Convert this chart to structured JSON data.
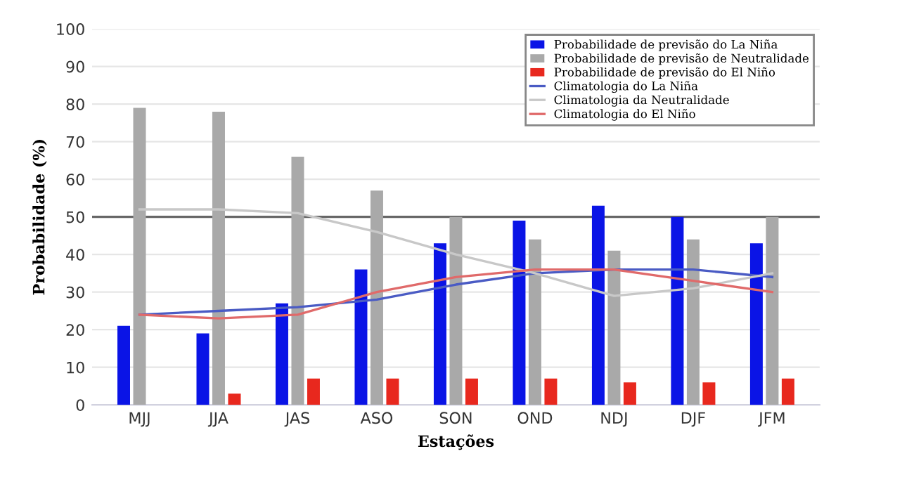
{
  "chart_data": {
    "type": "bar",
    "xlabel": "Estações",
    "ylabel": "Probabilidade (%)",
    "categories": [
      "MJJ",
      "JJA",
      "JAS",
      "ASO",
      "SON",
      "OND",
      "NDJ",
      "DJF",
      "JFM"
    ],
    "series": [
      {
        "name": "Probabilidade de previsão do La Niña",
        "color": "#0a14e6",
        "values": [
          21,
          19,
          27,
          36,
          43,
          49,
          53,
          50,
          43
        ]
      },
      {
        "name": "Probabilidade de previsão de Neutralidade",
        "color": "#a9a9a9",
        "values": [
          79,
          78,
          66,
          57,
          50,
          44,
          41,
          44,
          50
        ]
      },
      {
        "name": "Probabilidade de previsão do El Niño",
        "color": "#e8281e",
        "values": [
          0,
          3,
          7,
          7,
          7,
          7,
          6,
          6,
          7
        ]
      },
      {
        "name": "Climatologia do La Niña",
        "type": "line",
        "color": "#4a5bc4",
        "values": [
          24,
          25,
          26,
          28,
          32,
          35,
          36,
          36,
          34
        ]
      },
      {
        "name": "Climatologia da Neutralidade",
        "type": "line",
        "color": "#c8c8c8",
        "values": [
          52,
          52,
          51,
          46,
          40,
          35,
          29,
          31,
          35
        ]
      },
      {
        "name": "Climatologia do El Niño",
        "type": "line",
        "color": "#e06a6a",
        "values": [
          24,
          23,
          24,
          30,
          34,
          36,
          36,
          33,
          30
        ]
      }
    ],
    "ref_lines": [
      {
        "axis": "y",
        "value": 50,
        "color": "#666666"
      }
    ],
    "ylim": [
      0,
      100
    ],
    "yticks": [
      0,
      10,
      20,
      30,
      40,
      50,
      60,
      70,
      80,
      90,
      100
    ],
    "grid": "y",
    "legend": "top right",
    "marker": "none",
    "line_style": "solid"
  }
}
